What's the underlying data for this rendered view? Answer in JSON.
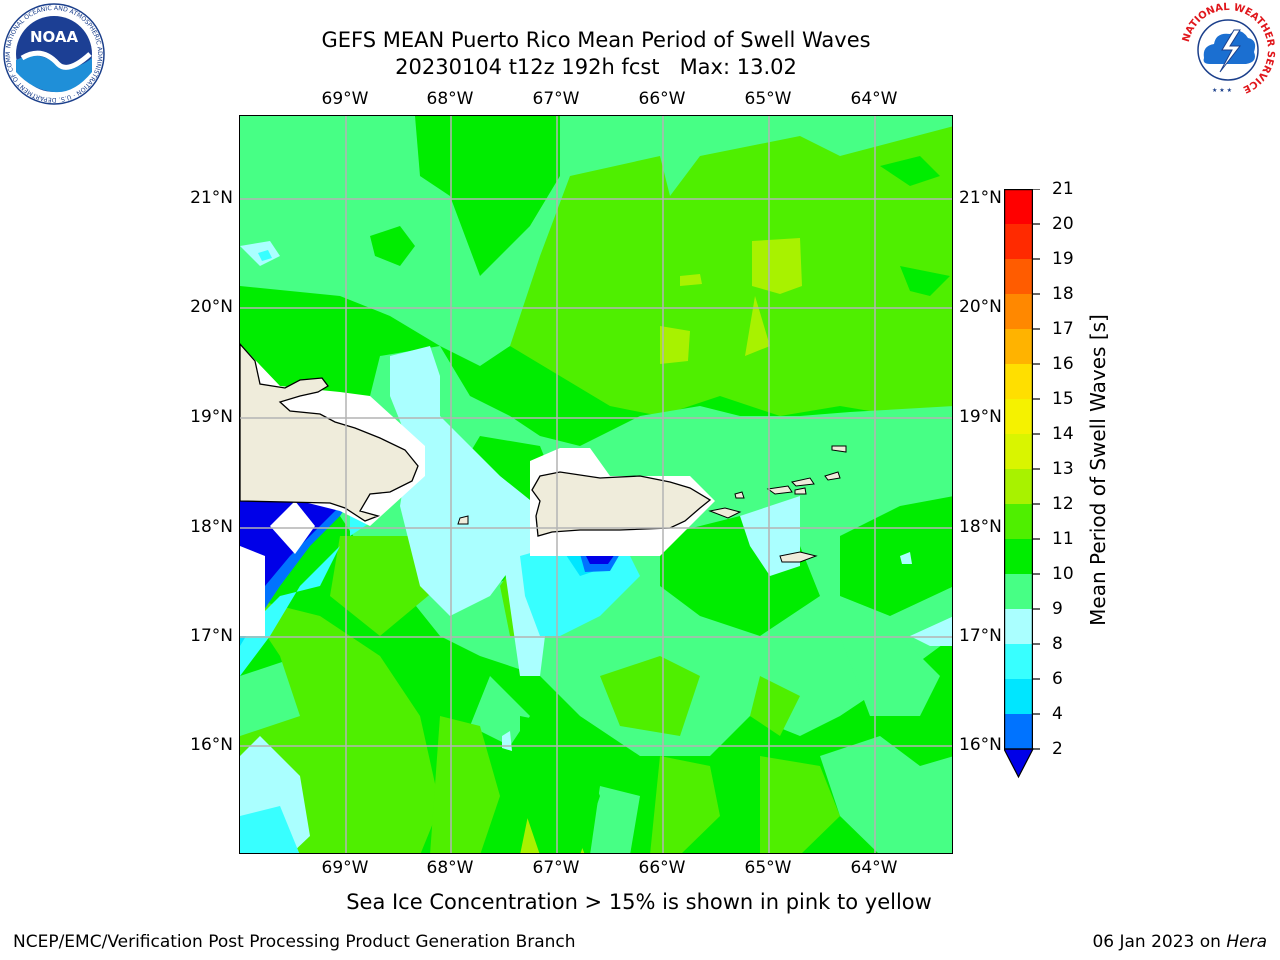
{
  "header": {
    "title_line1": "GEFS MEAN Puerto Rico Mean Period of Swell Waves",
    "title_line2": "20230104 t12z 192h fcst   Max: 13.02"
  },
  "map": {
    "region": "Puerto Rico",
    "variable": "Mean Period of Swell Waves",
    "units": "s",
    "max_value": 13.02,
    "lon_labels": [
      "69°W",
      "68°W",
      "67°W",
      "66°W",
      "65°W",
      "64°W"
    ],
    "lat_labels": [
      "21°N",
      "20°N",
      "19°N",
      "18°N",
      "17°N",
      "16°N"
    ],
    "land_color": "#efecdb",
    "grid_color": "#b4b4b4"
  },
  "colorbar": {
    "label": "Mean Period of Swell Waves [s]",
    "levels": [
      "2",
      "4",
      "6",
      "8",
      "9",
      "10",
      "11",
      "12",
      "13",
      "14",
      "15",
      "16",
      "17",
      "18",
      "19",
      "20",
      "21"
    ],
    "colors": [
      "#0000e8",
      "#0073ff",
      "#00e6ff",
      "#38ffff",
      "#aaffff",
      "#47ff85",
      "#00ed00",
      "#4fef00",
      "#a8f200",
      "#d9f500",
      "#f5f200",
      "#ffdf00",
      "#ffb300",
      "#ff8800",
      "#ff5c00",
      "#ff2a00",
      "#ff0000"
    ],
    "extend": "min"
  },
  "note": "Sea Ice Concentration > 15% is shown in pink to yellow",
  "footer": {
    "left": "NCEP/EMC/Verification Post Processing Product Generation Branch",
    "date": "06 Jan 2023 on",
    "host": "Hera"
  },
  "logos": {
    "noaa": "NOAA",
    "noaa_ring_text": "NATIONAL OCEANIC AND ATMOSPHERIC ADMINISTRATION · U.S. DEPARTMENT OF COMMERCE",
    "nws_ring_text": "NATIONAL WEATHER SERVICE"
  }
}
